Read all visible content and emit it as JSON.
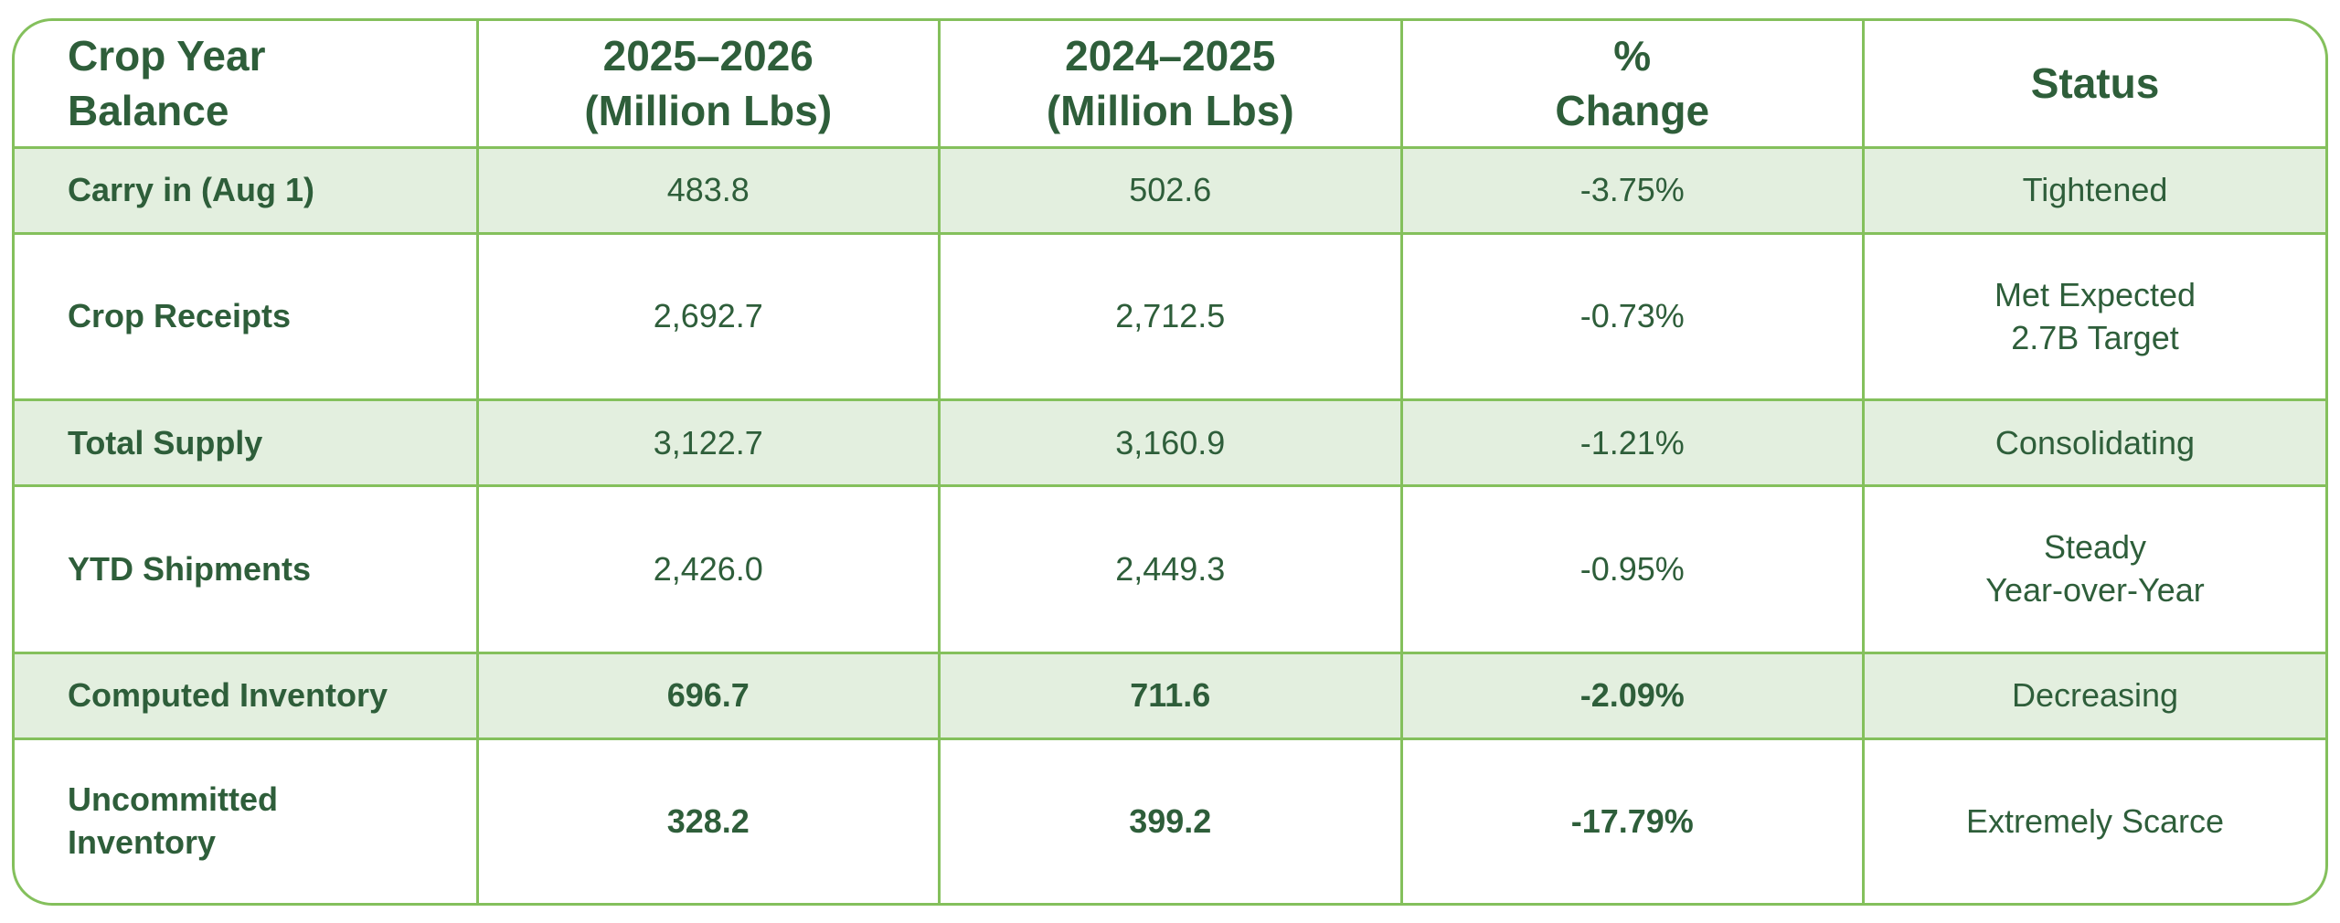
{
  "table": {
    "header": [
      "Crop Year\nBalance",
      "2025–2026\n(Million Lbs)",
      "2024–2025\n(Million Lbs)",
      "%\nChange",
      "Status"
    ],
    "rows": [
      [
        "Carry in (Aug 1)",
        "483.8",
        "502.6",
        "-3.75%",
        "Tightened"
      ],
      [
        "Crop Receipts",
        "2,692.7",
        "2,712.5",
        "-0.73%",
        "Met Expected\n2.7B Target"
      ],
      [
        "Total Supply",
        "3,122.7",
        "3,160.9",
        "-1.21%",
        "Consolidating"
      ],
      [
        "YTD Shipments",
        "2,426.0",
        "2,449.3",
        "-0.95%",
        "Steady\nYear-over-Year"
      ],
      [
        "Computed Inventory",
        "696.7",
        "711.6",
        "-2.09%",
        "Decreasing"
      ],
      [
        "Uncommitted\nInventory",
        "328.2",
        "399.2",
        "-17.79%",
        "Extremely Scarce"
      ]
    ]
  }
}
